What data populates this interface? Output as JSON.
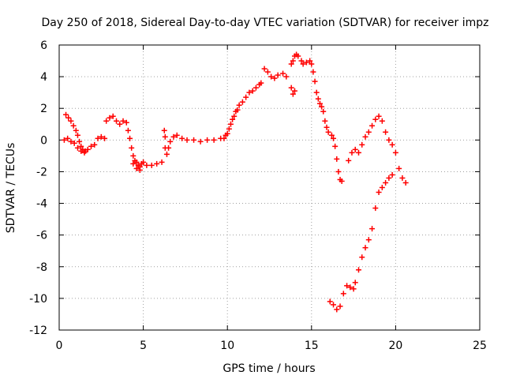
{
  "chart_data": {
    "type": "scatter",
    "title": "Day 250 of 2018, Sidereal Day-to-day VTEC variation (SDTVAR) for receiver impz",
    "xlabel": "GPS time / hours",
    "ylabel": "SDTVAR / TECUs",
    "xlim": [
      0,
      25
    ],
    "ylim": [
      -12,
      6
    ],
    "xticks": [
      0,
      5,
      10,
      15,
      20,
      25
    ],
    "yticks": [
      -12,
      -10,
      -8,
      -6,
      -4,
      -2,
      0,
      2,
      4,
      6
    ],
    "grid": true,
    "marker": "+",
    "marker_color": "#ff0000",
    "series": [
      {
        "values": [
          [
            0.3,
            0.0
          ],
          [
            0.5,
            0.1
          ],
          [
            0.7,
            -0.1
          ],
          [
            0.9,
            -0.2
          ],
          [
            1.1,
            -0.5
          ],
          [
            1.3,
            -0.7
          ],
          [
            1.5,
            -0.8
          ],
          [
            1.7,
            -0.6
          ],
          [
            1.9,
            -0.4
          ],
          [
            2.1,
            -0.3
          ],
          [
            2.3,
            0.1
          ],
          [
            2.5,
            0.2
          ],
          [
            2.7,
            0.1
          ],
          [
            0.4,
            1.6
          ],
          [
            0.55,
            1.4
          ],
          [
            0.7,
            1.2
          ],
          [
            0.85,
            0.9
          ],
          [
            1.0,
            0.6
          ],
          [
            1.1,
            0.3
          ],
          [
            1.2,
            -0.1
          ],
          [
            1.3,
            -0.4
          ],
          [
            1.4,
            -0.6
          ],
          [
            1.55,
            -0.7
          ],
          [
            2.8,
            1.2
          ],
          [
            3.0,
            1.4
          ],
          [
            3.2,
            1.5
          ],
          [
            3.4,
            1.2
          ],
          [
            3.6,
            1.0
          ],
          [
            3.8,
            1.2
          ],
          [
            4.0,
            1.1
          ],
          [
            4.1,
            0.6
          ],
          [
            4.2,
            0.1
          ],
          [
            4.3,
            -0.5
          ],
          [
            4.4,
            -1.0
          ],
          [
            4.5,
            -1.3
          ],
          [
            4.6,
            -1.4
          ],
          [
            4.7,
            -1.6
          ],
          [
            4.8,
            -1.7
          ],
          [
            4.9,
            -1.5
          ],
          [
            5.0,
            -1.4
          ],
          [
            5.2,
            -1.6
          ],
          [
            5.5,
            -1.6
          ],
          [
            5.8,
            -1.5
          ],
          [
            6.1,
            -1.4
          ],
          [
            4.4,
            -1.5
          ],
          [
            4.6,
            -1.8
          ],
          [
            4.8,
            -1.9
          ],
          [
            6.25,
            0.6
          ],
          [
            6.3,
            0.2
          ],
          [
            6.3,
            -0.5
          ],
          [
            6.4,
            -0.9
          ],
          [
            6.5,
            -0.5
          ],
          [
            6.6,
            -0.1
          ],
          [
            6.8,
            0.2
          ],
          [
            7.0,
            0.3
          ],
          [
            7.3,
            0.1
          ],
          [
            7.6,
            0.0
          ],
          [
            8.0,
            0.0
          ],
          [
            8.4,
            -0.1
          ],
          [
            8.8,
            0.0
          ],
          [
            9.2,
            0.0
          ],
          [
            9.6,
            0.1
          ],
          [
            9.9,
            0.3
          ],
          [
            10.1,
            0.7
          ],
          [
            10.3,
            1.3
          ],
          [
            10.5,
            1.8
          ],
          [
            10.7,
            2.2
          ],
          [
            10.9,
            2.4
          ],
          [
            11.1,
            2.7
          ],
          [
            11.3,
            3.0
          ],
          [
            11.5,
            3.1
          ],
          [
            11.7,
            3.3
          ],
          [
            11.9,
            3.5
          ],
          [
            12.0,
            3.6
          ],
          [
            9.8,
            0.1
          ],
          [
            10.0,
            0.4
          ],
          [
            10.2,
            1.0
          ],
          [
            10.4,
            1.5
          ],
          [
            10.6,
            1.9
          ],
          [
            12.2,
            4.5
          ],
          [
            12.4,
            4.3
          ],
          [
            12.6,
            4.0
          ],
          [
            12.8,
            3.9
          ],
          [
            13.0,
            4.1
          ],
          [
            13.3,
            4.2
          ],
          [
            13.5,
            4.0
          ],
          [
            13.8,
            4.8
          ],
          [
            13.9,
            5.0
          ],
          [
            14.0,
            5.3
          ],
          [
            14.1,
            5.4
          ],
          [
            14.2,
            5.3
          ],
          [
            14.4,
            5.0
          ],
          [
            14.5,
            4.8
          ],
          [
            14.7,
            4.9
          ],
          [
            14.9,
            5.0
          ],
          [
            15.0,
            4.8
          ],
          [
            15.1,
            4.3
          ],
          [
            15.2,
            3.7
          ],
          [
            15.3,
            3.0
          ],
          [
            15.4,
            2.6
          ],
          [
            15.5,
            2.3
          ],
          [
            15.6,
            2.1
          ],
          [
            15.7,
            1.8
          ],
          [
            15.8,
            1.2
          ],
          [
            15.9,
            0.8
          ],
          [
            16.0,
            0.5
          ],
          [
            16.2,
            0.3
          ],
          [
            16.3,
            0.1
          ],
          [
            16.4,
            -0.4
          ],
          [
            16.5,
            -1.2
          ],
          [
            16.6,
            -2.0
          ],
          [
            16.7,
            -2.5
          ],
          [
            16.8,
            -2.6
          ],
          [
            13.8,
            3.3
          ],
          [
            13.9,
            2.9
          ],
          [
            14.0,
            3.1
          ],
          [
            16.1,
            -10.2
          ],
          [
            16.3,
            -10.4
          ],
          [
            16.5,
            -10.7
          ],
          [
            16.7,
            -10.5
          ],
          [
            16.9,
            -9.7
          ],
          [
            17.1,
            -9.2
          ],
          [
            17.3,
            -9.3
          ],
          [
            17.5,
            -9.4
          ],
          [
            17.6,
            -9.0
          ],
          [
            17.8,
            -8.2
          ],
          [
            18.0,
            -7.4
          ],
          [
            18.2,
            -6.8
          ],
          [
            18.4,
            -6.3
          ],
          [
            18.6,
            -5.6
          ],
          [
            18.8,
            -4.3
          ],
          [
            19.0,
            -3.3
          ],
          [
            19.2,
            -3.0
          ],
          [
            19.4,
            -2.7
          ],
          [
            19.6,
            -2.4
          ],
          [
            19.8,
            -2.2
          ],
          [
            17.2,
            -1.3
          ],
          [
            17.4,
            -0.8
          ],
          [
            17.6,
            -0.6
          ],
          [
            17.8,
            -0.8
          ],
          [
            18.0,
            -0.3
          ],
          [
            18.2,
            0.2
          ],
          [
            18.4,
            0.5
          ],
          [
            18.6,
            0.9
          ],
          [
            18.8,
            1.3
          ],
          [
            19.0,
            1.5
          ],
          [
            19.2,
            1.2
          ],
          [
            19.4,
            0.5
          ],
          [
            19.6,
            0.0
          ],
          [
            19.8,
            -0.3
          ],
          [
            20.0,
            -0.8
          ],
          [
            20.2,
            -1.8
          ],
          [
            20.4,
            -2.4
          ],
          [
            20.6,
            -2.7
          ]
        ]
      }
    ]
  }
}
